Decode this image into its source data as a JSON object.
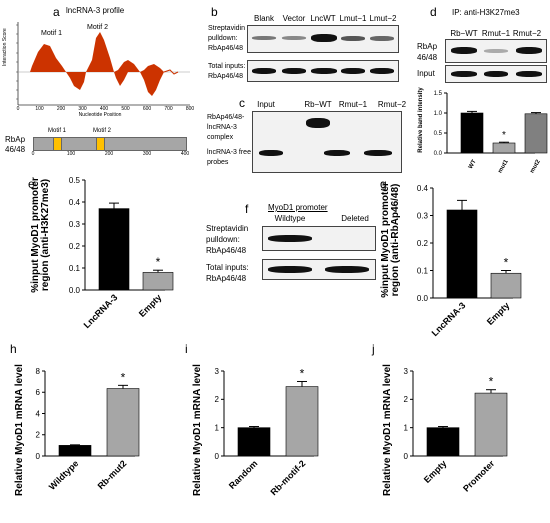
{
  "panels": {
    "a": {
      "label": "a",
      "title": "lncRNA-3 profile",
      "motif1": "Motif 1",
      "motif2": "Motif 2",
      "ylabel": "Interaction Score",
      "xlabel": "Nucleotide Position",
      "yticks": [
        "2.5",
        "2",
        "1.5",
        "1",
        "0.5",
        "0",
        "-0.5",
        "-1",
        "-1.5",
        "-2"
      ],
      "xticks": [
        "0",
        "100",
        "200",
        "300",
        "400",
        "500",
        "600",
        "700",
        "800"
      ],
      "protein_label_1": "RbAp",
      "protein_label_2": "46/48",
      "schematic_motif1": "Motif 1",
      "schematic_motif2": "Motif 2",
      "schematic_ticks": [
        "0",
        "100",
        "200",
        "300",
        "400"
      ]
    },
    "b": {
      "label": "b",
      "lanes": [
        "Blank",
        "Vector",
        "LncWT",
        "Lmut−1",
        "Lmut−2"
      ],
      "row1_1": "Streptavidin",
      "row1_2": "pulldown:",
      "row1_3": "RbAp46/48",
      "row2_1": "Total inputs:",
      "row2_2": "RbAp46/48"
    },
    "c": {
      "label": "c",
      "lanes": [
        "Input",
        "Rb−WT",
        "Rmut−1",
        "Rmut−2"
      ],
      "complex_1": "RbAp46/48-",
      "complex_2": "lncRNA-3",
      "complex_3": "complex",
      "free_1": "lncRNA-3 free",
      "free_2": "probes"
    },
    "d": {
      "label": "d",
      "title": "IP: anti-H3K27me3",
      "lanes": [
        "Rb−WT",
        "Rmut−1",
        "Rmut−2"
      ],
      "row1_1": "RbAp",
      "row1_2": "46/48",
      "row2": "Input"
    },
    "f": {
      "label": "f",
      "header": "MyoD1 promoter",
      "lanes": [
        "Wildtype",
        "Deleted"
      ],
      "row1_1": "Streptavidin",
      "row1_2": "pulldown:",
      "row1_3": "RbAp46/48",
      "row2_1": "Total inputs:",
      "row2_2": "RbAp46/48"
    }
  },
  "chart_data": [
    {
      "id": "d",
      "type": "bar",
      "categories": [
        "WT",
        "mut1",
        "mut2"
      ],
      "values": [
        1.0,
        0.25,
        0.98
      ],
      "errors": [
        0.04,
        0.02,
        0.03
      ],
      "colors": [
        "#000000",
        "#a6a6a6",
        "#808080"
      ],
      "ylabel": "Relative band intensity",
      "ylim": [
        0,
        1.5
      ],
      "yticks": [
        "0.0",
        "0.5",
        "1.0",
        "1.5"
      ],
      "star": "*",
      "star_index": 1
    },
    {
      "id": "e",
      "type": "bar",
      "categories": [
        "LncRNA-3",
        "Empty"
      ],
      "values": [
        0.37,
        0.08
      ],
      "errors": [
        0.025,
        0.01
      ],
      "colors": [
        "#000000",
        "#a6a6a6"
      ],
      "ylabel_1": "%input MyoD1 promoter",
      "ylabel_2": "region (anti-H3K27me3)",
      "ylim": [
        0,
        0.5
      ],
      "yticks": [
        "0.0",
        "0.1",
        "0.2",
        "0.3",
        "0.4",
        "0.5"
      ],
      "star": "*",
      "star_index": 1
    },
    {
      "id": "g",
      "type": "bar",
      "categories": [
        "LncRNA-3",
        "Empty"
      ],
      "values": [
        0.32,
        0.09
      ],
      "errors": [
        0.035,
        0.01
      ],
      "colors": [
        "#000000",
        "#a6a6a6"
      ],
      "ylabel_1": "%input MyoD1 promoter",
      "ylabel_2": "region (anti-RbAp46/48)",
      "ylim": [
        0,
        0.4
      ],
      "yticks": [
        "0.0",
        "0.1",
        "0.2",
        "0.3",
        "0.4"
      ],
      "star": "*",
      "star_index": 1
    },
    {
      "id": "h",
      "type": "bar",
      "categories": [
        "Wildtype",
        "Rb-mut2"
      ],
      "values": [
        1.0,
        6.35
      ],
      "errors": [
        0.05,
        0.3
      ],
      "colors": [
        "#000000",
        "#a6a6a6"
      ],
      "ylabel": "Relative MyoD1 mRNA level",
      "ylim": [
        0,
        8
      ],
      "yticks": [
        "0",
        "2",
        "4",
        "6",
        "8"
      ],
      "star": "*",
      "star_index": 1
    },
    {
      "id": "i",
      "type": "bar",
      "categories": [
        "Random",
        "Rb-motif-2"
      ],
      "values": [
        1.0,
        2.45
      ],
      "errors": [
        0.04,
        0.18
      ],
      "colors": [
        "#000000",
        "#a6a6a6"
      ],
      "ylabel": "Relative MyoD1 mRNA level",
      "ylim": [
        0,
        3
      ],
      "yticks": [
        "0",
        "1",
        "2",
        "3"
      ],
      "star": "*",
      "star_index": 1
    },
    {
      "id": "j",
      "type": "bar",
      "categories": [
        "Empty",
        "Promoter"
      ],
      "values": [
        1.0,
        2.22
      ],
      "errors": [
        0.04,
        0.12
      ],
      "colors": [
        "#000000",
        "#a6a6a6"
      ],
      "ylabel": "Relative MyoD1 mRNA level",
      "ylim": [
        0,
        3
      ],
      "yticks": [
        "0",
        "1",
        "2",
        "3"
      ],
      "star": "*",
      "star_index": 1
    }
  ]
}
